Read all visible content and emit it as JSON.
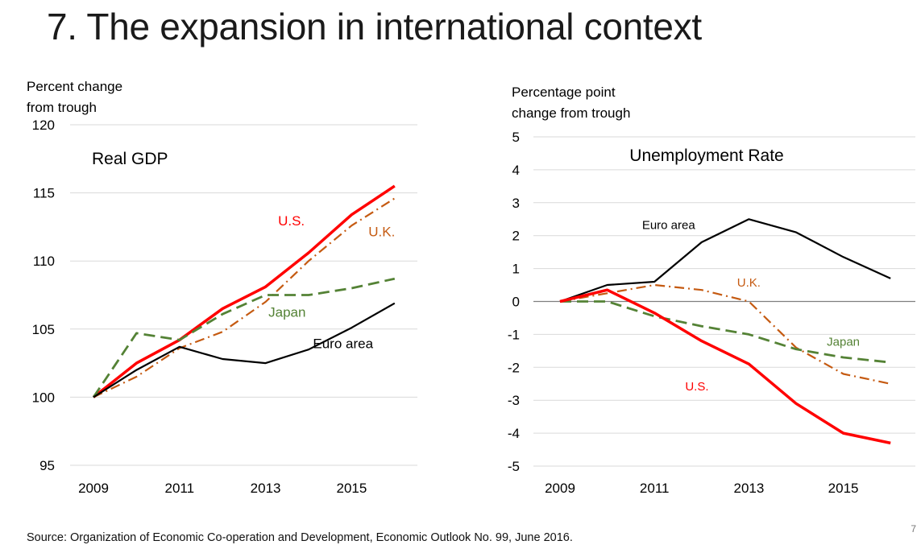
{
  "slide": {
    "title": "7. The expansion in international context",
    "source": "Source: Organization of Economic Co-operation and Development, Economic Outlook No. 99, June 2016.",
    "page_number": "7"
  },
  "colors": {
    "us": "#ff0000",
    "uk": "#c55a11",
    "japan": "#548235",
    "euro": "#000000",
    "grid": "#d9d9d9",
    "zero_line": "#7f7f7f"
  },
  "chart_data": [
    {
      "type": "line",
      "title": "Real GDP",
      "ylabel_line1": "Percent change",
      "ylabel_line2": "from trough",
      "xlabel": "",
      "x": [
        2009,
        2010,
        2011,
        2012,
        2013,
        2014,
        2015,
        2016
      ],
      "xticks": [
        "2009",
        "2011",
        "2013",
        "2015"
      ],
      "xtick_values": [
        2009,
        2011,
        2013,
        2015
      ],
      "ylim": [
        95,
        120
      ],
      "yticks": [
        95,
        100,
        105,
        110,
        115,
        120
      ],
      "grid": true,
      "series": [
        {
          "name": "U.S.",
          "key": "us",
          "style": "solid-thick",
          "values": [
            100,
            102.5,
            104.2,
            106.5,
            108.1,
            110.6,
            113.4,
            115.5
          ]
        },
        {
          "name": "U.K.",
          "key": "uk",
          "style": "dash-dot",
          "values": [
            100,
            101.5,
            103.6,
            104.8,
            107.0,
            110.0,
            112.6,
            114.6
          ]
        },
        {
          "name": "Japan",
          "key": "japan",
          "style": "dashed",
          "values": [
            100,
            104.7,
            104.2,
            106.1,
            107.5,
            107.5,
            108.0,
            108.7
          ]
        },
        {
          "name": "Euro area",
          "key": "euro",
          "style": "solid",
          "values": [
            100,
            102.0,
            103.7,
            102.8,
            102.5,
            103.5,
            105.1,
            106.9
          ]
        }
      ],
      "annotations": [
        {
          "text": "U.S.",
          "key": "us",
          "x": 2013.6,
          "y": 112.6
        },
        {
          "text": "U.K.",
          "key": "uk",
          "x": 2015.7,
          "y": 111.8
        },
        {
          "text": "Japan",
          "key": "japan",
          "x": 2013.5,
          "y": 105.9
        },
        {
          "text": "Euro area",
          "key": "euro",
          "x": 2014.8,
          "y": 103.6
        }
      ]
    },
    {
      "type": "line",
      "title": "Unemployment Rate",
      "ylabel_line1": "Percentage point",
      "ylabel_line2": "change from trough",
      "xlabel": "",
      "x": [
        2009,
        2010,
        2011,
        2012,
        2013,
        2014,
        2015,
        2016
      ],
      "xticks": [
        "2009",
        "2011",
        "2013",
        "2015"
      ],
      "xtick_values": [
        2009,
        2011,
        2013,
        2015
      ],
      "ylim": [
        -5,
        5
      ],
      "yticks": [
        -5,
        -4,
        -3,
        -2,
        -1,
        0,
        1,
        2,
        3,
        4,
        5
      ],
      "grid": true,
      "series": [
        {
          "name": "Euro area",
          "key": "euro",
          "style": "solid",
          "values": [
            0,
            0.5,
            0.6,
            1.8,
            2.5,
            2.1,
            1.35,
            0.7
          ]
        },
        {
          "name": "U.K.",
          "key": "uk",
          "style": "dash-dot",
          "values": [
            0,
            0.25,
            0.5,
            0.35,
            0.0,
            -1.4,
            -2.2,
            -2.5
          ]
        },
        {
          "name": "Japan",
          "key": "japan",
          "style": "dashed",
          "values": [
            0,
            0,
            -0.45,
            -0.75,
            -1.0,
            -1.45,
            -1.7,
            -1.85
          ]
        },
        {
          "name": "U.S.",
          "key": "us",
          "style": "solid-thick",
          "values": [
            0,
            0.35,
            -0.35,
            -1.2,
            -1.9,
            -3.1,
            -4.0,
            -4.3
          ]
        }
      ],
      "annotations": [
        {
          "text": "Euro area",
          "key": "euro",
          "x": 2011.3,
          "y": 2.2
        },
        {
          "text": "U.K.",
          "key": "uk",
          "x": 2013.0,
          "y": 0.45
        },
        {
          "text": "Japan",
          "key": "japan",
          "x": 2015.0,
          "y": -1.35
        },
        {
          "text": "U.S.",
          "key": "us",
          "x": 2011.9,
          "y": -2.7
        }
      ]
    }
  ]
}
